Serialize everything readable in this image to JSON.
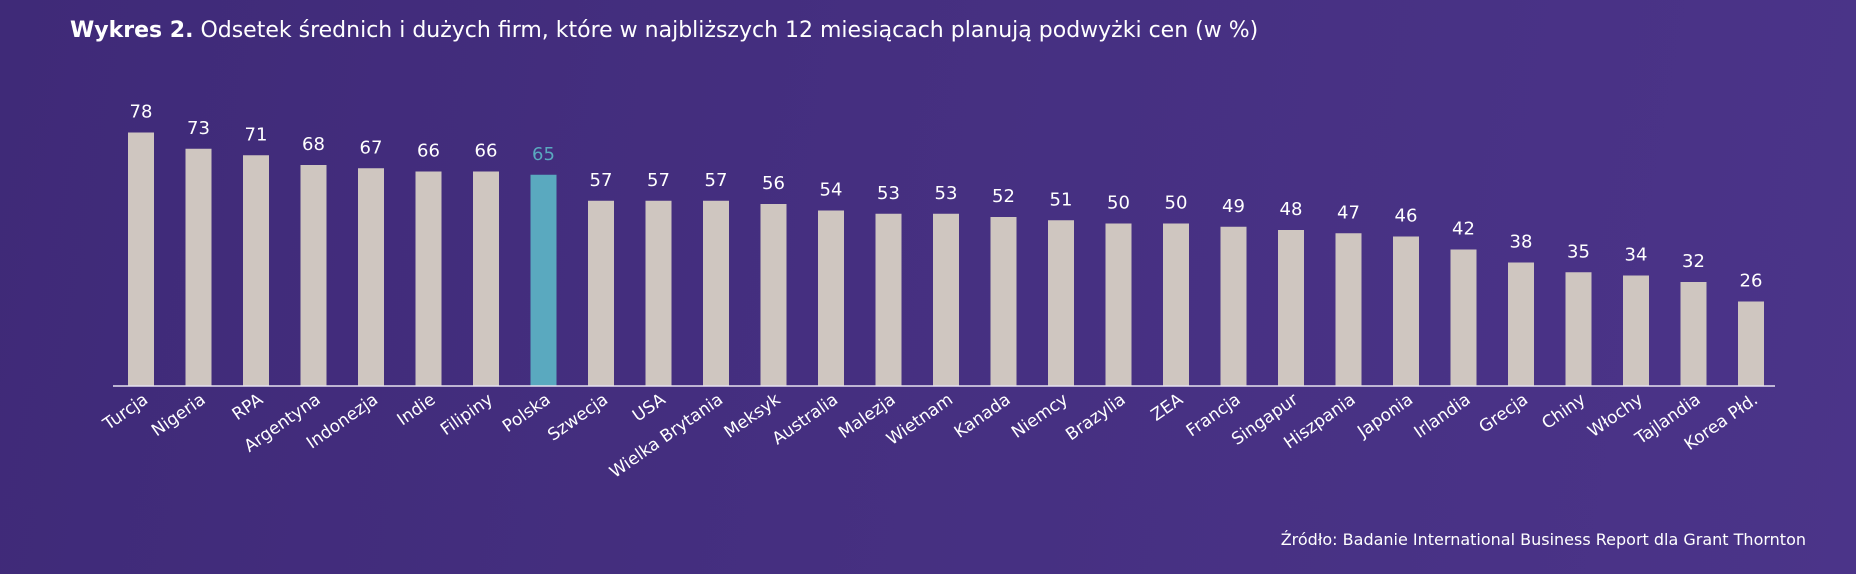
{
  "title": {
    "prefix": "Wykres 2.",
    "text": "Odsetek średnich i dużych firm, które w najbliższych 12 miesiącach planują podwyżki cen (w %)"
  },
  "source": {
    "label": "Źródło:",
    "text": "Badanie International Business Report dla Grant Thornton"
  },
  "colors": {
    "bar": "#cfc6c0",
    "highlight_bar": "#5aa9bf",
    "highlight_label": "#5aa9bf",
    "label": "#ffffff",
    "axis": "#e6e1ef"
  },
  "chart_data": {
    "type": "bar",
    "highlight": "Polska",
    "categories": [
      "Turcja",
      "Nigeria",
      "RPA",
      "Argentyna",
      "Indonezja",
      "Indie",
      "Filipiny",
      "Polska",
      "Szwecja",
      "USA",
      "Wielka Brytania",
      "Meksyk",
      "Australia",
      "Malezja",
      "Wietnam",
      "Kanada",
      "Niemcy",
      "Brazylia",
      "ZEA",
      "Francja",
      "Singapur",
      "Hiszpania",
      "Japonia",
      "Irlandia",
      "Grecja",
      "Chiny",
      "Włochy",
      "Tajlandia",
      "Korea Płd."
    ],
    "values": [
      78,
      73,
      71,
      68,
      67,
      66,
      66,
      65,
      57,
      57,
      57,
      56,
      54,
      53,
      53,
      52,
      51,
      50,
      50,
      49,
      48,
      47,
      46,
      42,
      38,
      35,
      34,
      32,
      26
    ],
    "ylim": [
      0,
      80
    ],
    "grid": false
  }
}
